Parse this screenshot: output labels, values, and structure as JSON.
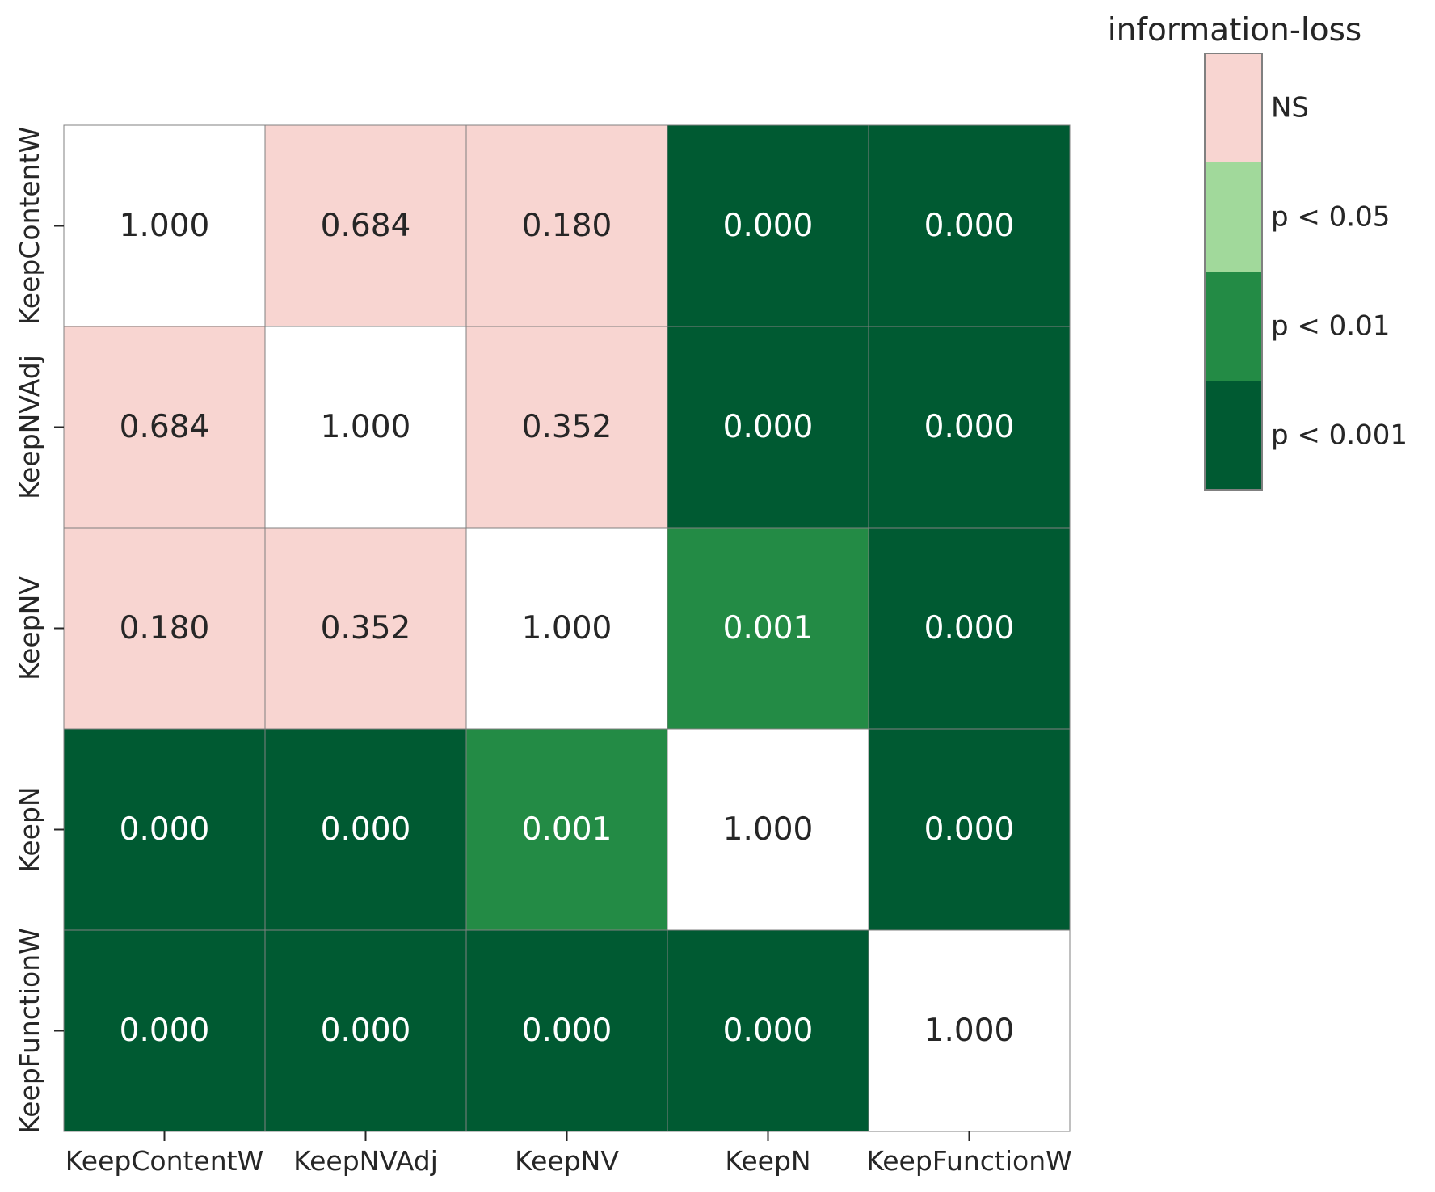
{
  "chart_data": {
    "type": "heatmap",
    "title": "",
    "xlabel": "",
    "ylabel": "",
    "x_labels": [
      "KeepContentW",
      "KeepNVAdj",
      "KeepNV",
      "KeepN",
      "KeepFunctionW"
    ],
    "y_labels": [
      "KeepContentW",
      "KeepNVAdj",
      "KeepNV",
      "KeepN",
      "KeepFunctionW"
    ],
    "values": [
      [
        "1.000",
        "0.684",
        "0.180",
        "0.000",
        "0.000"
      ],
      [
        "0.684",
        "1.000",
        "0.352",
        "0.000",
        "0.000"
      ],
      [
        "0.180",
        "0.352",
        "1.000",
        "0.001",
        "0.000"
      ],
      [
        "0.000",
        "0.000",
        "0.001",
        "1.000",
        "0.000"
      ],
      [
        "0.000",
        "0.000",
        "0.000",
        "0.000",
        "1.000"
      ]
    ],
    "diagonal_color": "#ffffff",
    "legend": {
      "title": "information-loss",
      "placement": "top-right",
      "categories": [
        {
          "label": "NS",
          "color": "#f8d5d1"
        },
        {
          "label": "p < 0.05",
          "color": "#a1d99b"
        },
        {
          "label": "p < 0.01",
          "color": "#238b45"
        },
        {
          "label": "p < 0.001",
          "color": "#005a32"
        }
      ]
    },
    "text_colors": {
      "light_cell": "#262626",
      "dark_cell": "#ffffff"
    },
    "grid_line_color": "#808080"
  }
}
